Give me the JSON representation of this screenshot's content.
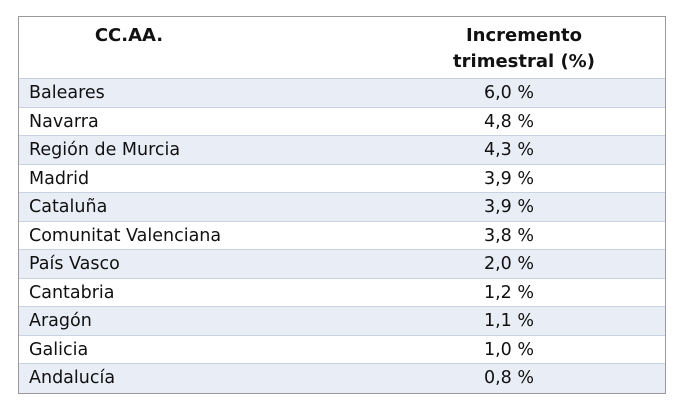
{
  "table": {
    "header": [
      "CC.AA.",
      "Incremento trimestral (%)"
    ],
    "rows": [
      [
        "Baleares",
        "6,0 %"
      ],
      [
        "Navarra",
        "4,8 %"
      ],
      [
        "Región de Murcia",
        "4,3 %"
      ],
      [
        "Madrid",
        "3,9 %"
      ],
      [
        "Cataluña",
        "3,9 %"
      ],
      [
        "Comunitat Valenciana",
        "3,8 %"
      ],
      [
        "País Vasco",
        "2,0 %"
      ],
      [
        "Cantabria",
        "1,2 %"
      ],
      [
        "Aragón",
        "1,1 %"
      ],
      [
        "Galicia",
        "1,0 %"
      ],
      [
        "Andalucía",
        "0,8 %"
      ]
    ]
  }
}
